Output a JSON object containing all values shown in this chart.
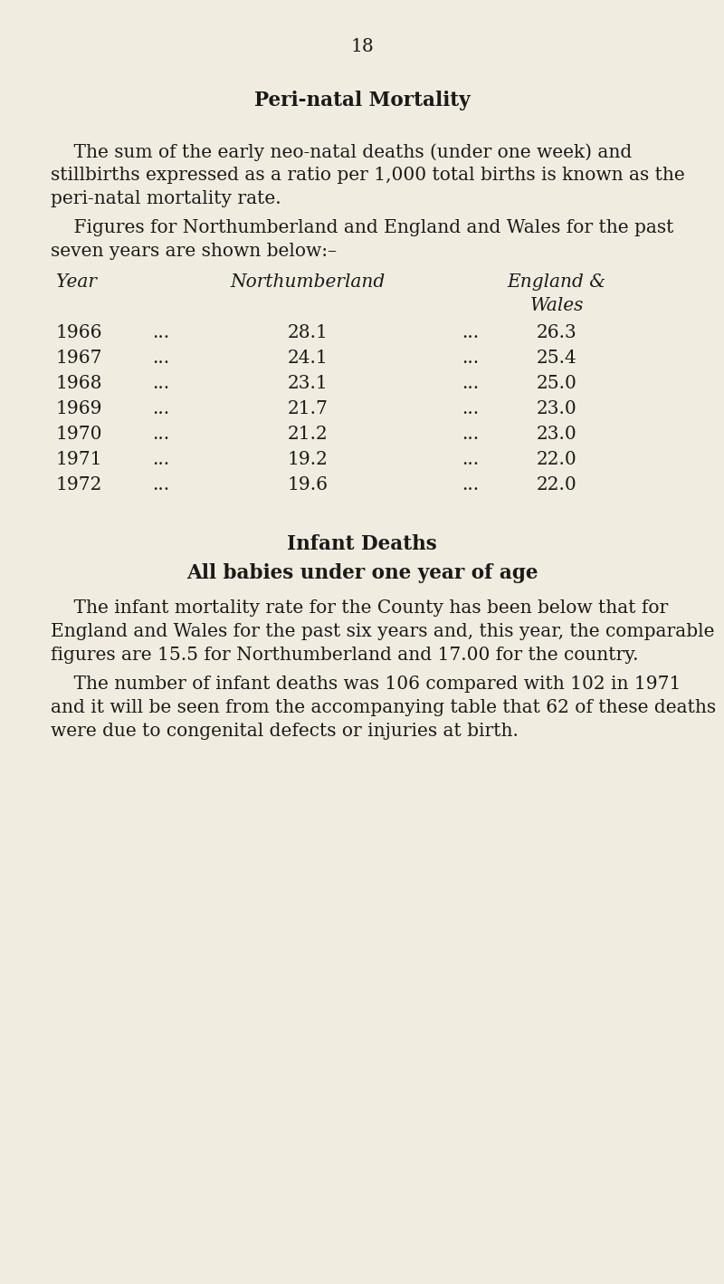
{
  "page_number": "18",
  "background_color": "#f0ece0",
  "title": "Peri-natal Mortality",
  "para1_indent": "    The sum of the early neo-natal deaths (under one week) and",
  "para1_line2": "stillbirths expressed as a ratio per 1,000 total births is known as the",
  "para1_line3": "peri-natal mortality rate.",
  "para2_indent": "    Figures for Northumberland and England and Wales for the past",
  "para2_line2": "seven years are shown below:–",
  "table_header_year": "Year",
  "table_header_northumberland": "Northumberland",
  "table_header_england": "England &",
  "table_header_wales": "Wales",
  "table_data": [
    {
      "year": "1966",
      "northumberland": "28.1",
      "england_wales": "26.3"
    },
    {
      "year": "1967",
      "northumberland": "24.1",
      "england_wales": "25.4"
    },
    {
      "year": "1968",
      "northumberland": "23.1",
      "england_wales": "25.0"
    },
    {
      "year": "1969",
      "northumberland": "21.7",
      "england_wales": "23.0"
    },
    {
      "year": "1970",
      "northumberland": "21.2",
      "england_wales": "23.0"
    },
    {
      "year": "1971",
      "northumberland": "19.2",
      "england_wales": "22.0"
    },
    {
      "year": "1972",
      "northumberland": "19.6",
      "england_wales": "22.0"
    }
  ],
  "section2_title1": "Infant Deaths",
  "section2_title2": "All babies under one year of age",
  "para3_indent": "    The infant mortality rate for the County has been below that for",
  "para3_line2": "England and Wales for the past six years and, this year, the comparable",
  "para3_line3": "figures are 15.5 for Northumberland and 17.00 for the country.",
  "para4_indent": "    The number of infant deaths was 106 compared with 102 in 1971",
  "para4_line2": "and it will be seen from the accompanying table that 62 of these deaths",
  "para4_line3": "were due to congenital defects or injuries at birth.",
  "text_color": "#1a1a1a",
  "font_size_body": 14.5,
  "font_size_title": 15.5,
  "font_size_page_num": 14.5,
  "dots": "...",
  "fig_width": 8.0,
  "fig_height": 14.18,
  "dpi": 100
}
